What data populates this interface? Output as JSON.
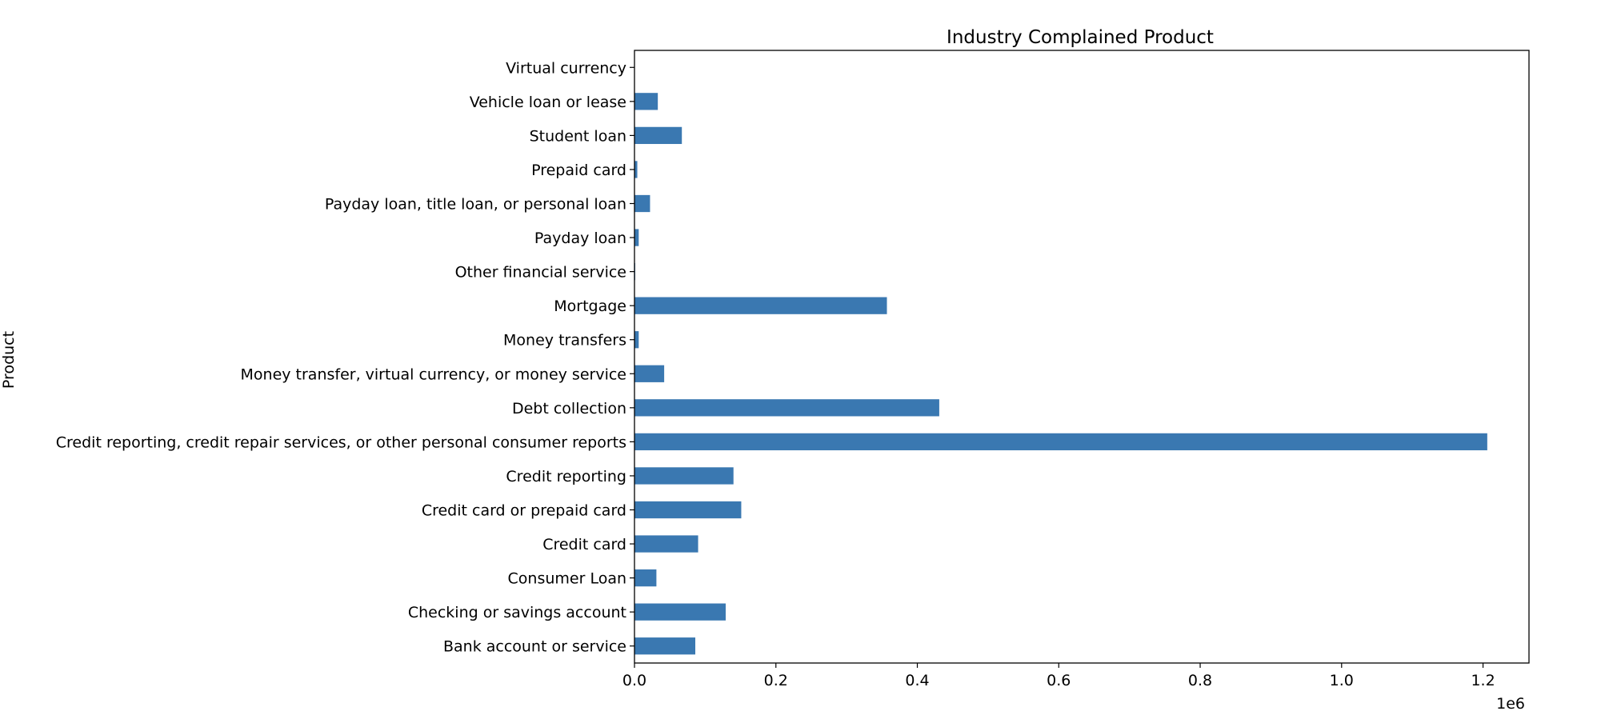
{
  "chart_data": {
    "type": "bar",
    "orientation": "horizontal",
    "title": "Industry Complained Product",
    "xlabel": "",
    "ylabel": "Product",
    "x_offset_label": "1e6",
    "xlim": [
      0,
      1.265
    ],
    "x_ticks": [
      0.0,
      0.2,
      0.4,
      0.6,
      0.8,
      1.0,
      1.2
    ],
    "x_tick_labels": [
      "0.0",
      "0.2",
      "0.4",
      "0.6",
      "0.8",
      "1.0",
      "1.2"
    ],
    "grid": false,
    "bar_color": "#3a78b1",
    "categories": [
      "Bank account or service",
      "Checking or savings account",
      "Consumer Loan",
      "Credit card",
      "Credit card or prepaid card",
      "Credit reporting",
      "Credit reporting, credit repair services, or other personal consumer reports",
      "Debt collection",
      "Money transfer, virtual currency, or money service",
      "Money transfers",
      "Mortgage",
      "Other financial service",
      "Payday loan",
      "Payday loan, title loan, or personal loan",
      "Prepaid card",
      "Student loan",
      "Vehicle loan or lease",
      "Virtual currency"
    ],
    "values": [
      86000,
      129000,
      31000,
      90000,
      151000,
      140000,
      1206000,
      431000,
      42000,
      6000,
      357000,
      1000,
      6000,
      22000,
      4000,
      67000,
      33000,
      0
    ]
  }
}
